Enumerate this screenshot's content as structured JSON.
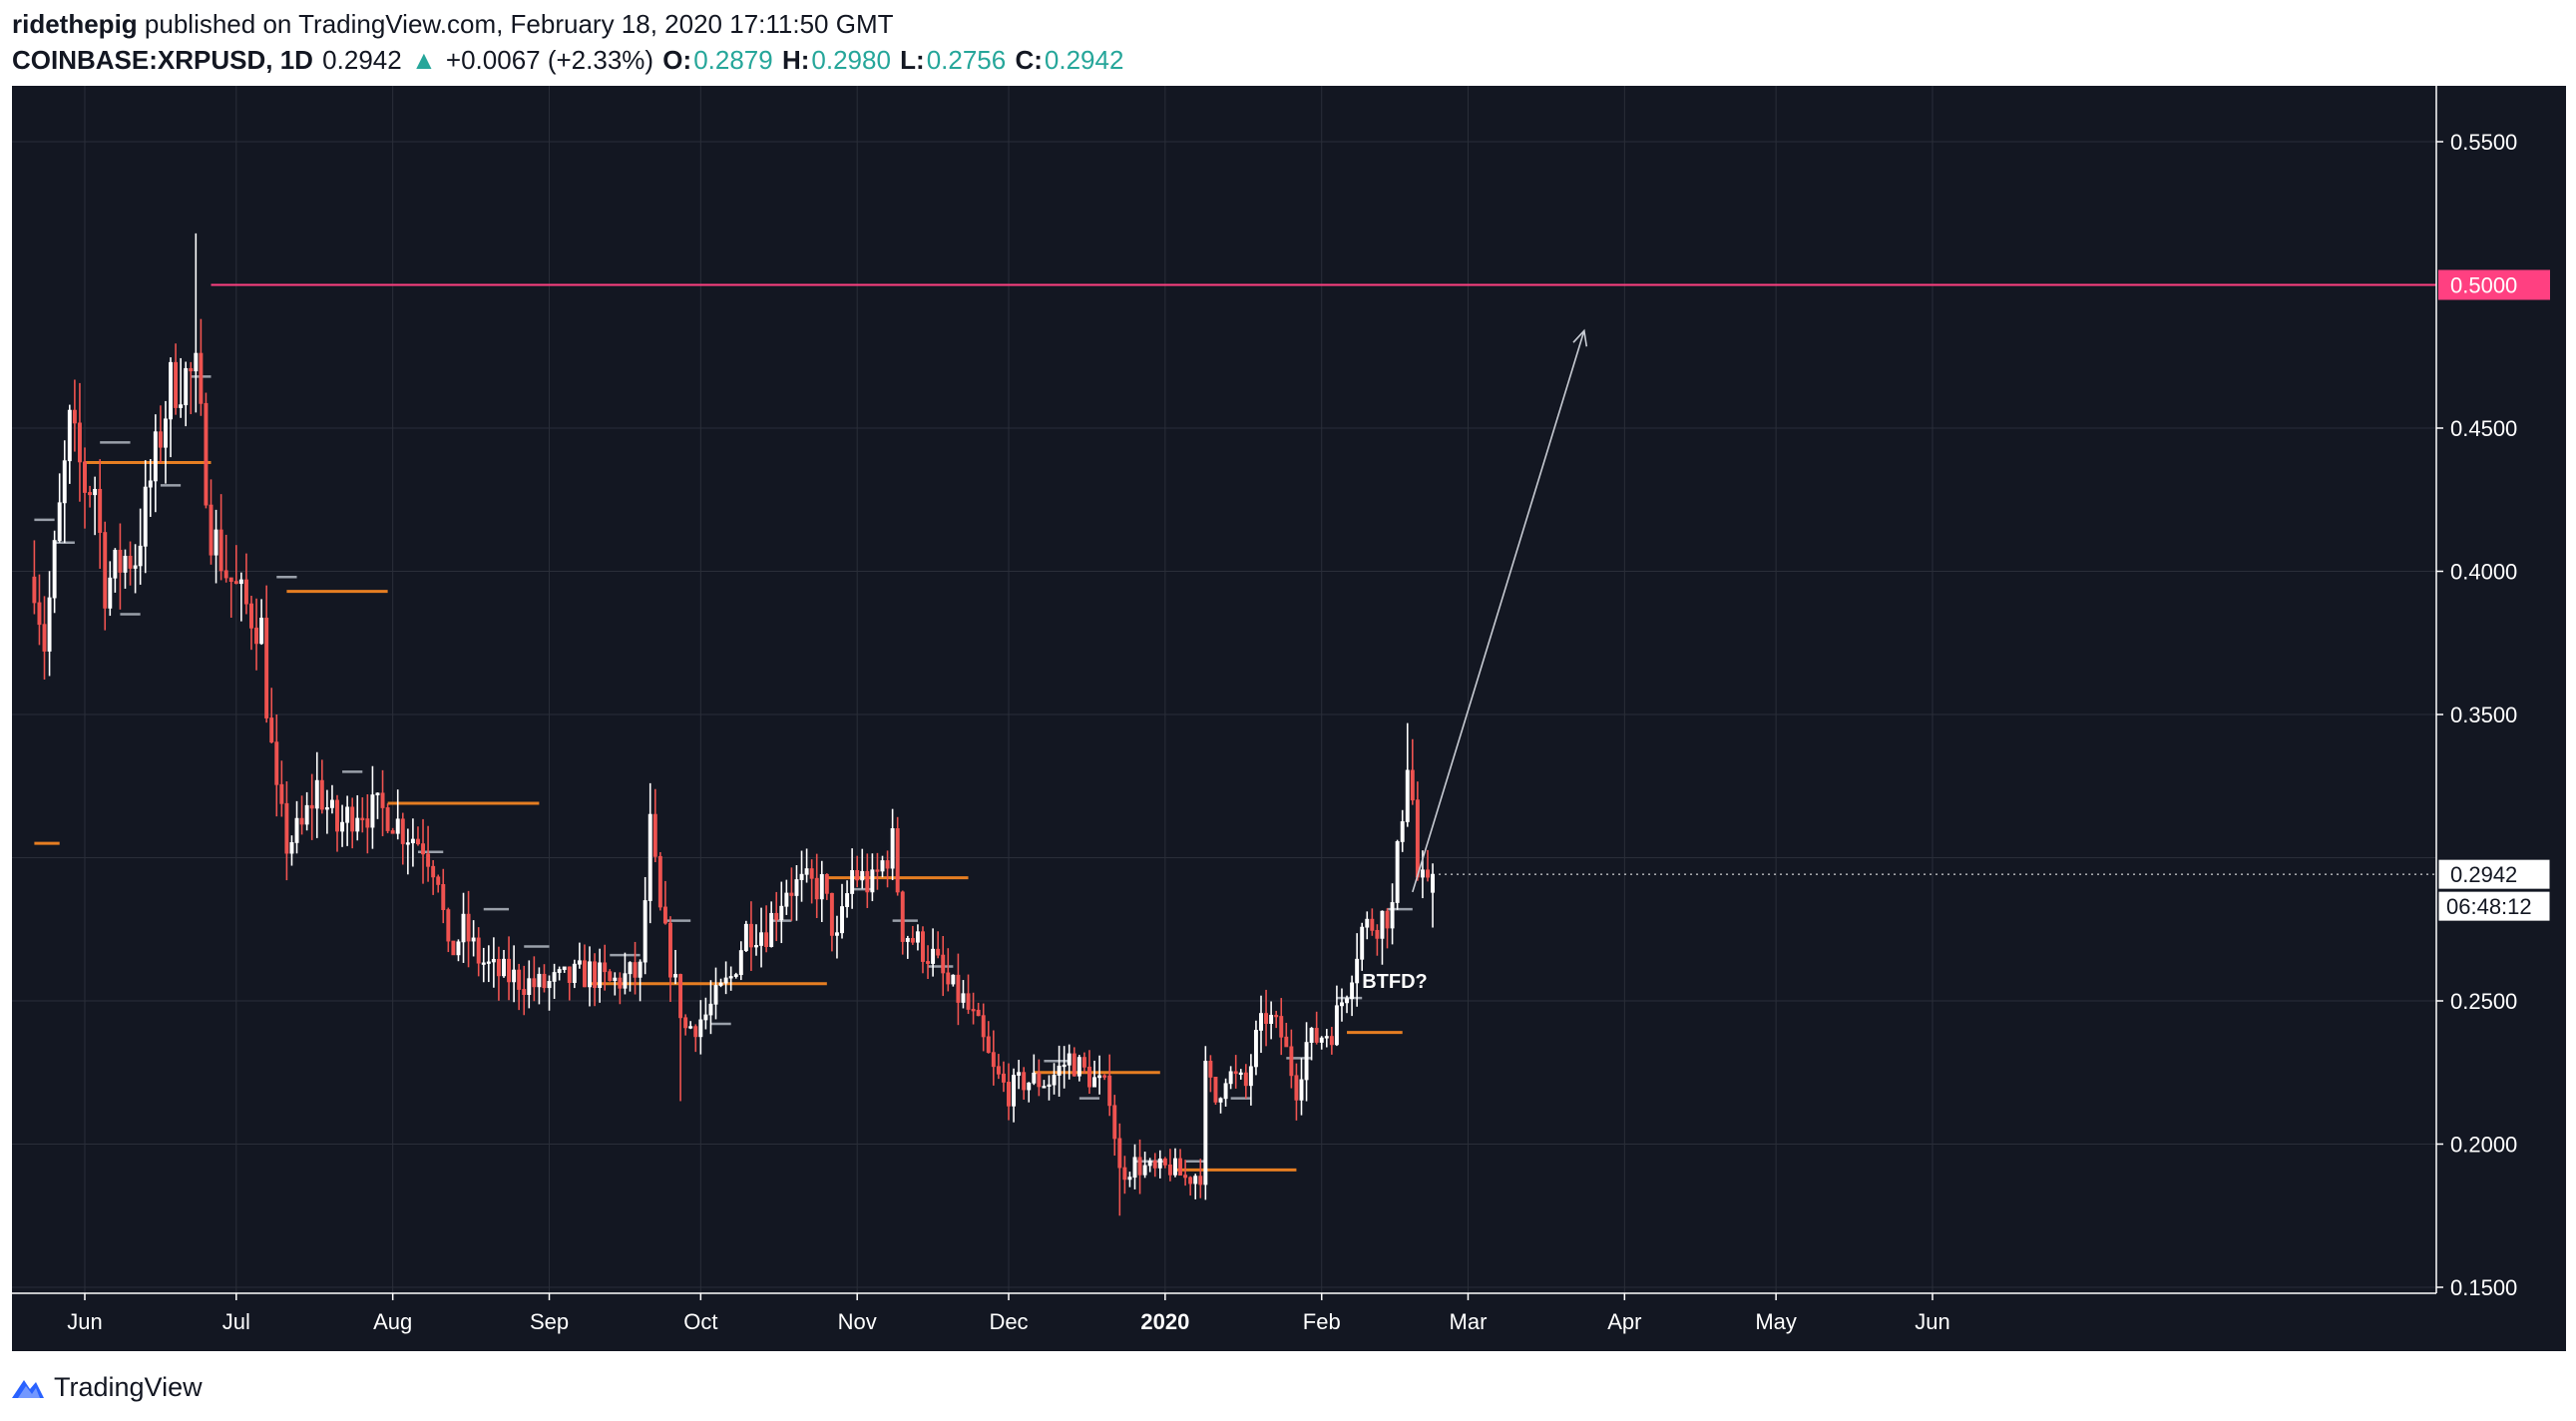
{
  "header": {
    "author": "ridethepig",
    "published": "published on TradingView.com, February 18, 2020 17:11:50 GMT",
    "symbol": "COINBASE:XRPUSD, 1D",
    "last": "0.2942",
    "arrow": "▲",
    "change": "+0.0067 (+2.33%)",
    "o_label": "O:",
    "o": "0.2879",
    "h_label": "H:",
    "h": "0.2980",
    "l_label": "L:",
    "l": "0.2756",
    "c_label": "C:",
    "c": "0.2942"
  },
  "footer": {
    "brand": "TradingView"
  },
  "colors": {
    "background": "#131722",
    "up": "#ffffff",
    "down": "#ef5350",
    "level": "#e67e22",
    "target": "#ff4081",
    "grid": "#2a2e39",
    "axis_text": "#ffffff"
  },
  "chart_data": {
    "type": "candlestick",
    "ylim": [
      0.14,
      0.56
    ],
    "y_ticks": [
      "0.5500",
      "0.4500",
      "0.4000",
      "0.3500",
      "0.2500",
      "0.2000",
      "0.1500"
    ],
    "x_labels": [
      "Jun",
      "Jul",
      "Aug",
      "Sep",
      "Oct",
      "Nov",
      "Dec",
      "2020",
      "Feb",
      "Mar",
      "Apr",
      "May",
      "Jun"
    ],
    "x_label_days": [
      0,
      30,
      61,
      92,
      122,
      153,
      183,
      214,
      245,
      274,
      305,
      335,
      366
    ],
    "price_label": "0.2942",
    "countdown": "06:48:12",
    "target_label": "0.5000",
    "target_line": {
      "value": 0.5,
      "from_day": 25
    },
    "annotation": "BTFD?",
    "projection_arrow": {
      "from": [
        263,
        0.288
      ],
      "to": [
        297,
        0.484
      ]
    },
    "series": [
      {
        "name": "XRPUSD",
        "anchors": [
          [
            -10,
            0.398
          ],
          [
            -8,
            0.375
          ],
          [
            -5,
            0.42
          ],
          [
            -3,
            0.45
          ],
          [
            0,
            0.43
          ],
          [
            2,
            0.43
          ],
          [
            4,
            0.395
          ],
          [
            6,
            0.4
          ],
          [
            8,
            0.405
          ],
          [
            10,
            0.405
          ],
          [
            14,
            0.44
          ],
          [
            17,
            0.465
          ],
          [
            20,
            0.468
          ],
          [
            22,
            0.468
          ],
          [
            25,
            0.415
          ],
          [
            28,
            0.4
          ],
          [
            31,
            0.39
          ],
          [
            33,
            0.385
          ],
          [
            35,
            0.38
          ],
          [
            36,
            0.355
          ],
          [
            38,
            0.32
          ],
          [
            40,
            0.305
          ],
          [
            43,
            0.31
          ],
          [
            46,
            0.325
          ],
          [
            50,
            0.31
          ],
          [
            54,
            0.318
          ],
          [
            57,
            0.316
          ],
          [
            60,
            0.316
          ],
          [
            63,
            0.31
          ],
          [
            67,
            0.305
          ],
          [
            70,
            0.295
          ],
          [
            72,
            0.265
          ],
          [
            75,
            0.275
          ],
          [
            78,
            0.265
          ],
          [
            81,
            0.26
          ],
          [
            85,
            0.258
          ],
          [
            90,
            0.255
          ],
          [
            95,
            0.257
          ],
          [
            100,
            0.26
          ],
          [
            104,
            0.256
          ],
          [
            110,
            0.26
          ],
          [
            112,
            0.31
          ],
          [
            114,
            0.28
          ],
          [
            117,
            0.255
          ],
          [
            119,
            0.24
          ],
          [
            123,
            0.245
          ],
          [
            128,
            0.258
          ],
          [
            131,
            0.275
          ],
          [
            135,
            0.275
          ],
          [
            139,
            0.29
          ],
          [
            143,
            0.29
          ],
          [
            146,
            0.29
          ],
          [
            149,
            0.27
          ],
          [
            152,
            0.295
          ],
          [
            156,
            0.29
          ],
          [
            158,
            0.298
          ],
          [
            160,
            0.305
          ],
          [
            162,
            0.275
          ],
          [
            165,
            0.27
          ],
          [
            168,
            0.265
          ],
          [
            171,
            0.255
          ],
          [
            174,
            0.25
          ],
          [
            177,
            0.24
          ],
          [
            180,
            0.225
          ],
          [
            183,
            0.218
          ],
          [
            186,
            0.222
          ],
          [
            191,
            0.222
          ],
          [
            195,
            0.23
          ],
          [
            200,
            0.222
          ],
          [
            203,
            0.218
          ],
          [
            205,
            0.19
          ],
          [
            208,
            0.193
          ],
          [
            212,
            0.19
          ],
          [
            215,
            0.192
          ],
          [
            218,
            0.188
          ],
          [
            221,
            0.19
          ],
          [
            222,
            0.225
          ],
          [
            224,
            0.215
          ],
          [
            226,
            0.225
          ],
          [
            230,
            0.22
          ],
          [
            232,
            0.236
          ],
          [
            234,
            0.245
          ],
          [
            237,
            0.238
          ],
          [
            240,
            0.22
          ],
          [
            242,
            0.235
          ],
          [
            245,
            0.238
          ],
          [
            247,
            0.24
          ],
          [
            250,
            0.255
          ],
          [
            253,
            0.275
          ],
          [
            256,
            0.278
          ],
          [
            259,
            0.282
          ],
          [
            262,
            0.335
          ],
          [
            263,
            0.32
          ],
          [
            264,
            0.293
          ],
          [
            266,
            0.2875
          ],
          [
            267,
            0.2942
          ]
        ]
      }
    ],
    "levels_orange": [
      {
        "value": 0.438,
        "from": 0,
        "to": 25
      },
      {
        "value": 0.393,
        "from": 40,
        "to": 60
      },
      {
        "value": 0.319,
        "from": 60,
        "to": 90
      },
      {
        "value": 0.305,
        "from": -10,
        "to": -5
      },
      {
        "value": 0.293,
        "from": 147,
        "to": 175
      },
      {
        "value": 0.256,
        "from": 100,
        "to": 147
      },
      {
        "value": 0.225,
        "from": 188,
        "to": 213
      },
      {
        "value": 0.239,
        "from": 250,
        "to": 261
      },
      {
        "value": 0.191,
        "from": 216,
        "to": 240
      }
    ],
    "levels_grey": [
      {
        "value": 0.445,
        "from": 3,
        "to": 9
      },
      {
        "value": 0.418,
        "from": -10,
        "to": -6
      },
      {
        "value": 0.41,
        "from": -6,
        "to": -2
      },
      {
        "value": 0.385,
        "from": 7,
        "to": 11
      },
      {
        "value": 0.43,
        "from": 15,
        "to": 19
      },
      {
        "value": 0.468,
        "from": 21,
        "to": 25
      },
      {
        "value": 0.398,
        "from": 38,
        "to": 42
      },
      {
        "value": 0.33,
        "from": 51,
        "to": 55
      },
      {
        "value": 0.302,
        "from": 66,
        "to": 71
      },
      {
        "value": 0.282,
        "from": 79,
        "to": 84
      },
      {
        "value": 0.269,
        "from": 87,
        "to": 92
      },
      {
        "value": 0.266,
        "from": 104,
        "to": 110
      },
      {
        "value": 0.278,
        "from": 115,
        "to": 120
      },
      {
        "value": 0.242,
        "from": 124,
        "to": 128
      },
      {
        "value": 0.278,
        "from": 136,
        "to": 140
      },
      {
        "value": 0.289,
        "from": 152,
        "to": 156
      },
      {
        "value": 0.278,
        "from": 160,
        "to": 165
      },
      {
        "value": 0.262,
        "from": 167,
        "to": 172
      },
      {
        "value": 0.229,
        "from": 190,
        "to": 195
      },
      {
        "value": 0.216,
        "from": 197,
        "to": 201
      },
      {
        "value": 0.194,
        "from": 208,
        "to": 214
      },
      {
        "value": 0.194,
        "from": 218,
        "to": 222
      },
      {
        "value": 0.216,
        "from": 227,
        "to": 231
      },
      {
        "value": 0.23,
        "from": 238,
        "to": 243
      },
      {
        "value": 0.251,
        "from": 248,
        "to": 253
      },
      {
        "value": 0.282,
        "from": 258,
        "to": 263
      }
    ]
  }
}
